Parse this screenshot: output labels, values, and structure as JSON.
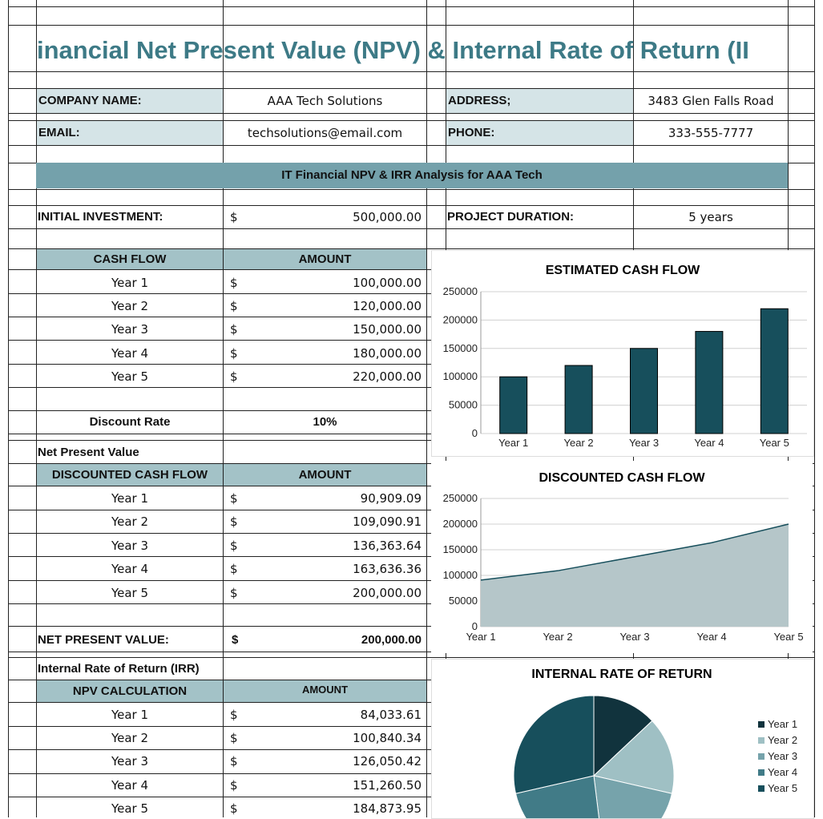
{
  "title": "inancial Net Present Value (NPV) & Internal Rate of Return (II",
  "company": {
    "name_label": "COMPANY NAME:",
    "name_value": "AAA Tech Solutions",
    "address_label": "ADDRESS;",
    "address_value": "3483 Glen Falls Road",
    "email_label": "EMAIL:",
    "email_value": "techsolutions@email.com",
    "phone_label": "PHONE:",
    "phone_value": "333-555-7777"
  },
  "banner": "IT Financial NPV & IRR Analysis for AAA Tech",
  "investment": {
    "label": "INITIAL INVESTMENT:",
    "currency": "$",
    "value": "500,000.00",
    "duration_label": "PROJECT DURATION:",
    "duration_value": "5 years"
  },
  "cash_flow": {
    "header_label": "CASH FLOW",
    "header_amount": "AMOUNT",
    "rows": [
      {
        "year": "Year 1",
        "currency": "$",
        "amount": "100,000.00"
      },
      {
        "year": "Year 2",
        "currency": "$",
        "amount": "120,000.00"
      },
      {
        "year": "Year 3",
        "currency": "$",
        "amount": "150,000.00"
      },
      {
        "year": "Year 4",
        "currency": "$",
        "amount": "180,000.00"
      },
      {
        "year": "Year 5",
        "currency": "$",
        "amount": "220,000.00"
      }
    ],
    "discount_label": "Discount Rate",
    "discount_value": "10%"
  },
  "npv_section_label": "Net Present Value",
  "discounted": {
    "header_label": "DISCOUNTED CASH FLOW",
    "header_amount": "AMOUNT",
    "rows": [
      {
        "year": "Year 1",
        "currency": "$",
        "amount": "90,909.09"
      },
      {
        "year": "Year 2",
        "currency": "$",
        "amount": "109,090.91"
      },
      {
        "year": "Year 3",
        "currency": "$",
        "amount": "136,363.64"
      },
      {
        "year": "Year 4",
        "currency": "$",
        "amount": "163,636.36"
      },
      {
        "year": "Year 5",
        "currency": "$",
        "amount": "200,000.00"
      }
    ],
    "npv_label": "NET PRESENT VALUE:",
    "npv_currency": "$",
    "npv_value": "200,000.00"
  },
  "irr_section_label": "Internal Rate of Return (IRR)",
  "npv_calc": {
    "header_label": "NPV CALCULATION",
    "header_amount": "AMOUNT",
    "rows": [
      {
        "year": "Year 1",
        "currency": "$",
        "amount": "84,033.61"
      },
      {
        "year": "Year 2",
        "currency": "$",
        "amount": "100,840.34"
      },
      {
        "year": "Year 3",
        "currency": "$",
        "amount": "126,050.42"
      },
      {
        "year": "Year 4",
        "currency": "$",
        "amount": "151,260.50"
      },
      {
        "year": "Year 5",
        "currency": "$",
        "amount": "184,873.95"
      }
    ]
  },
  "colors": {
    "title": "#3d7a86",
    "banner": "#74a1ab",
    "header": "#a3c2c7",
    "label_bg": "#d5e4e7",
    "bar": "#174f5c",
    "area_fill": "#b5c6c9",
    "area_line": "#174f5c"
  },
  "chart_data": [
    {
      "type": "bar",
      "title": "ESTIMATED CASH FLOW",
      "categories": [
        "Year 1",
        "Year 2",
        "Year 3",
        "Year 4",
        "Year 5"
      ],
      "values": [
        100000,
        120000,
        150000,
        180000,
        220000
      ],
      "ylim": [
        0,
        250000
      ],
      "yticks": [
        "0",
        "50000",
        "100000",
        "150000",
        "200000",
        "250000"
      ],
      "grid": true
    },
    {
      "type": "area",
      "title": "DISCOUNTED CASH FLOW",
      "categories": [
        "Year 1",
        "Year 2",
        "Year 3",
        "Year 4",
        "Year 5"
      ],
      "values": [
        90909.09,
        109090.91,
        136363.64,
        163636.36,
        200000
      ],
      "ylim": [
        0,
        250000
      ],
      "yticks": [
        "0",
        "50000",
        "100000",
        "150000",
        "200000",
        "250000"
      ],
      "grid": true
    },
    {
      "type": "pie",
      "title": "INTERNAL RATE OF RETURN",
      "categories": [
        "Year 1",
        "Year 2",
        "Year 3",
        "Year 4",
        "Year 5"
      ],
      "values": [
        84033.61,
        100840.34,
        126050.42,
        151260.5,
        184873.95
      ],
      "colors": [
        "#11333d",
        "#9fc0c4",
        "#76a3ab",
        "#417b87",
        "#174f5c"
      ],
      "legend": "right"
    }
  ]
}
